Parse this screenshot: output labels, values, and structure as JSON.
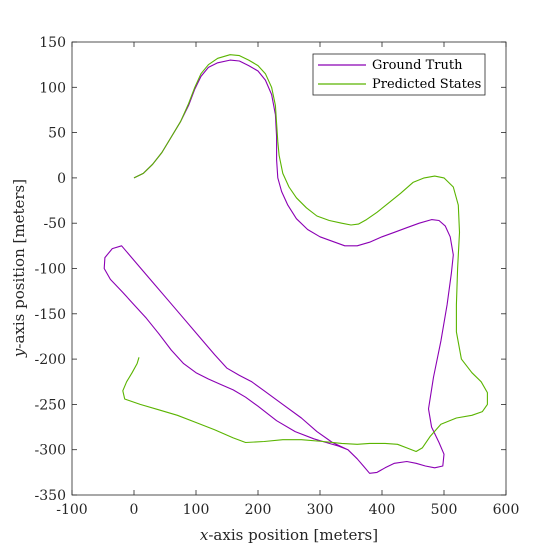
{
  "chart_data": {
    "type": "line",
    "xlabel": {
      "italic": "x",
      "rest": "-axis position [meters]"
    },
    "ylabel": {
      "italic": "y",
      "rest": "-axis position [meters]"
    },
    "xlim": [
      -100,
      600
    ],
    "ylim": [
      -350,
      150
    ],
    "xticks": [
      -100,
      0,
      100,
      200,
      300,
      400,
      500,
      600
    ],
    "yticks": [
      -350,
      -300,
      -250,
      -200,
      -150,
      -100,
      -50,
      0,
      50,
      100,
      150
    ],
    "grid": false,
    "legend_position": "top-right",
    "series": [
      {
        "name": "Ground Truth",
        "color": "#8b00b4",
        "points": [
          [
            0,
            0
          ],
          [
            15,
            5
          ],
          [
            30,
            15
          ],
          [
            45,
            28
          ],
          [
            60,
            45
          ],
          [
            75,
            62
          ],
          [
            88,
            80
          ],
          [
            98,
            98
          ],
          [
            108,
            112
          ],
          [
            120,
            122
          ],
          [
            135,
            127
          ],
          [
            155,
            130
          ],
          [
            170,
            129
          ],
          [
            185,
            124
          ],
          [
            200,
            118
          ],
          [
            212,
            108
          ],
          [
            222,
            92
          ],
          [
            228,
            70
          ],
          [
            230,
            45
          ],
          [
            230,
            20
          ],
          [
            232,
            0
          ],
          [
            238,
            -15
          ],
          [
            248,
            -30
          ],
          [
            262,
            -45
          ],
          [
            280,
            -57
          ],
          [
            300,
            -65
          ],
          [
            320,
            -70
          ],
          [
            340,
            -75
          ],
          [
            360,
            -75
          ],
          [
            380,
            -71
          ],
          [
            400,
            -65
          ],
          [
            420,
            -60
          ],
          [
            440,
            -55
          ],
          [
            460,
            -50
          ],
          [
            480,
            -46
          ],
          [
            492,
            -47
          ],
          [
            502,
            -53
          ],
          [
            510,
            -65
          ],
          [
            515,
            -85
          ],
          [
            512,
            -105
          ],
          [
            505,
            -140
          ],
          [
            495,
            -180
          ],
          [
            483,
            -220
          ],
          [
            475,
            -255
          ],
          [
            480,
            -275
          ],
          [
            492,
            -292
          ],
          [
            500,
            -305
          ],
          [
            498,
            -318
          ],
          [
            485,
            -320
          ],
          [
            470,
            -318
          ],
          [
            455,
            -315
          ],
          [
            440,
            -313
          ],
          [
            420,
            -315
          ],
          [
            405,
            -320
          ],
          [
            392,
            -325
          ],
          [
            380,
            -326
          ],
          [
            370,
            -318
          ],
          [
            360,
            -310
          ],
          [
            345,
            -300
          ],
          [
            320,
            -292
          ],
          [
            295,
            -280
          ],
          [
            270,
            -265
          ],
          [
            240,
            -250
          ],
          [
            210,
            -235
          ],
          [
            190,
            -225
          ],
          [
            170,
            -218
          ],
          [
            150,
            -210
          ],
          [
            130,
            -195
          ],
          [
            105,
            -175
          ],
          [
            80,
            -155
          ],
          [
            55,
            -135
          ],
          [
            30,
            -115
          ],
          [
            5,
            -95
          ],
          [
            -20,
            -75
          ],
          [
            -35,
            -78
          ],
          [
            -47,
            -88
          ],
          [
            -48,
            -100
          ],
          [
            -38,
            -112
          ],
          [
            -20,
            -125
          ],
          [
            0,
            -140
          ],
          [
            20,
            -155
          ],
          [
            40,
            -172
          ],
          [
            60,
            -190
          ],
          [
            80,
            -205
          ],
          [
            100,
            -215
          ],
          [
            120,
            -222
          ],
          [
            140,
            -228
          ],
          [
            160,
            -234
          ],
          [
            180,
            -242
          ],
          [
            200,
            -252
          ],
          [
            230,
            -268
          ],
          [
            260,
            -280
          ],
          [
            290,
            -288
          ],
          [
            310,
            -292
          ],
          [
            330,
            -296
          ],
          [
            345,
            -300
          ]
        ]
      },
      {
        "name": "Predicted States",
        "color": "#5ab400",
        "points": [
          [
            0,
            0
          ],
          [
            15,
            5
          ],
          [
            30,
            15
          ],
          [
            45,
            28
          ],
          [
            60,
            45
          ],
          [
            75,
            62
          ],
          [
            88,
            82
          ],
          [
            98,
            100
          ],
          [
            108,
            115
          ],
          [
            120,
            125
          ],
          [
            135,
            132
          ],
          [
            155,
            136
          ],
          [
            170,
            135
          ],
          [
            185,
            130
          ],
          [
            200,
            124
          ],
          [
            212,
            115
          ],
          [
            222,
            100
          ],
          [
            228,
            80
          ],
          [
            230,
            60
          ],
          [
            232,
            40
          ],
          [
            234,
            25
          ],
          [
            240,
            5
          ],
          [
            250,
            -10
          ],
          [
            262,
            -22
          ],
          [
            278,
            -33
          ],
          [
            295,
            -42
          ],
          [
            315,
            -47
          ],
          [
            335,
            -50
          ],
          [
            350,
            -52
          ],
          [
            362,
            -51
          ],
          [
            375,
            -46
          ],
          [
            392,
            -38
          ],
          [
            410,
            -28
          ],
          [
            430,
            -17
          ],
          [
            450,
            -5
          ],
          [
            468,
            0
          ],
          [
            485,
            2
          ],
          [
            500,
            0
          ],
          [
            515,
            -10
          ],
          [
            523,
            -30
          ],
          [
            525,
            -60
          ],
          [
            522,
            -100
          ],
          [
            520,
            -140
          ],
          [
            520,
            -170
          ],
          [
            528,
            -200
          ],
          [
            545,
            -215
          ],
          [
            560,
            -225
          ],
          [
            570,
            -237
          ],
          [
            570,
            -250
          ],
          [
            562,
            -258
          ],
          [
            545,
            -262
          ],
          [
            520,
            -265
          ],
          [
            495,
            -272
          ],
          [
            478,
            -285
          ],
          [
            465,
            -298
          ],
          [
            455,
            -302
          ],
          [
            440,
            -298
          ],
          [
            425,
            -294
          ],
          [
            405,
            -293
          ],
          [
            380,
            -293
          ],
          [
            360,
            -294
          ],
          [
            335,
            -293
          ],
          [
            305,
            -291
          ],
          [
            270,
            -289
          ],
          [
            240,
            -289
          ],
          [
            210,
            -291
          ],
          [
            180,
            -292
          ],
          [
            160,
            -287
          ],
          [
            130,
            -278
          ],
          [
            100,
            -270
          ],
          [
            70,
            -262
          ],
          [
            40,
            -256
          ],
          [
            10,
            -250
          ],
          [
            -15,
            -244
          ],
          [
            -18,
            -235
          ],
          [
            -12,
            -225
          ],
          [
            -3,
            -215
          ],
          [
            5,
            -205
          ],
          [
            8,
            -198
          ]
        ]
      }
    ]
  }
}
